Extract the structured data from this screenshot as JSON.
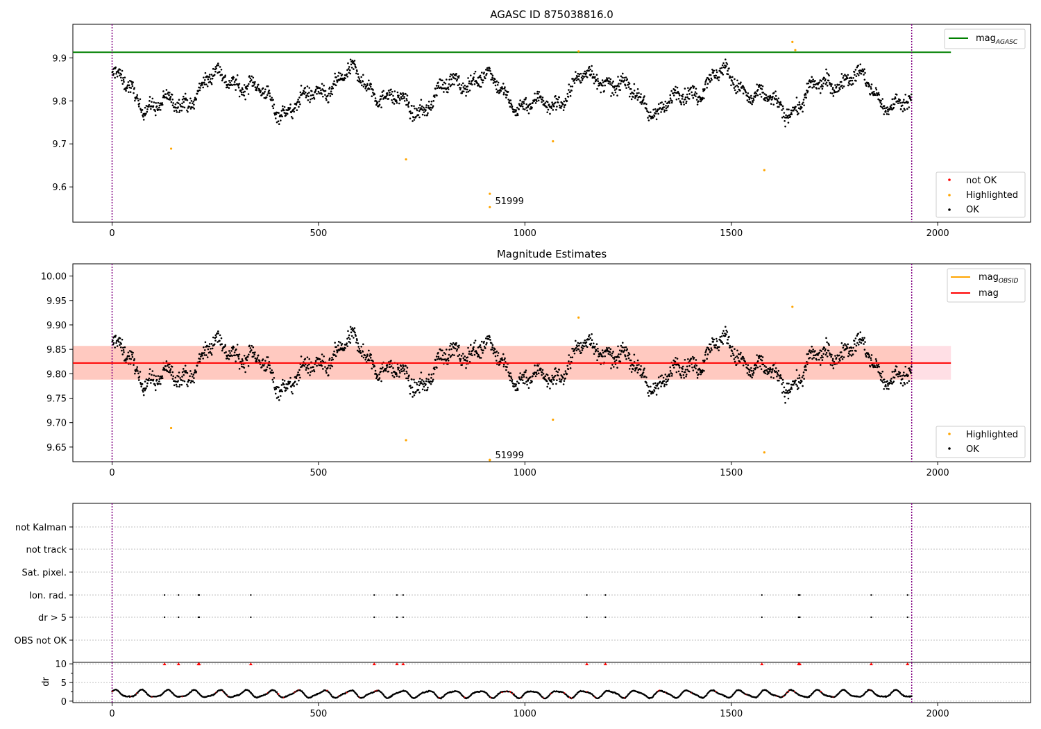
{
  "chart_data": [
    {
      "type": "scatter",
      "title": "AGASC ID 875038816.0",
      "xlim": [
        -95,
        2225
      ],
      "ylim": [
        9.518,
        9.978
      ],
      "xticks": [
        0,
        500,
        1000,
        1500,
        2000
      ],
      "yticks": [
        9.6,
        9.7,
        9.8,
        9.9
      ],
      "vlines": [
        0,
        1937
      ],
      "hlines": [
        {
          "y": 9.913,
          "x0": -95,
          "x1": 2032,
          "color": "#008000"
        }
      ],
      "series": [
        {
          "name": "not OK",
          "color": "#ff0000"
        },
        {
          "name": "Highlighted",
          "color": "#ffa500",
          "points": [
            [
              143,
              9.689
            ],
            [
              712,
              9.664
            ],
            [
              915,
              9.584
            ],
            [
              915,
              9.553
            ],
            [
              1068,
              9.706
            ],
            [
              1580,
              9.639
            ],
            [
              1648,
              9.937
            ],
            [
              1655,
              9.918
            ],
            [
              1130,
              9.915
            ]
          ]
        },
        {
          "name": "OK",
          "color": "#000000",
          "generated_range": [
            0,
            1937
          ]
        }
      ],
      "legend_lines": [
        {
          "label": "mag",
          "sub": "AGASC",
          "color": "#008000"
        }
      ],
      "annotations": [
        {
          "text": "51999",
          "x": 928,
          "y": 9.56
        }
      ]
    },
    {
      "type": "scatter",
      "title": "Magnitude Estimates",
      "xlim": [
        -95,
        2225
      ],
      "ylim": [
        9.62,
        10.025
      ],
      "xticks": [
        0,
        500,
        1000,
        1500,
        2000
      ],
      "yticks": [
        9.65,
        9.7,
        9.75,
        9.8,
        9.85,
        9.9,
        9.95,
        10.0
      ],
      "vlines": [
        0,
        1937
      ],
      "band": {
        "y0": 9.788,
        "y1": 9.857,
        "x0": -95,
        "x1": 2032
      },
      "hlines": [
        {
          "y": 9.822,
          "x0": -95,
          "x1": 2032,
          "color": "#ff0000"
        }
      ],
      "series": [
        {
          "name": "Highlighted",
          "color": "#ffa500",
          "points": [
            [
              143,
              9.689
            ],
            [
              712,
              9.664
            ],
            [
              915,
              9.623
            ],
            [
              915,
              9.624
            ],
            [
              1068,
              9.706
            ],
            [
              1580,
              9.639
            ],
            [
              1648,
              9.937
            ],
            [
              1130,
              9.915
            ]
          ]
        },
        {
          "name": "OK",
          "color": "#000000",
          "generated_range": [
            0,
            1937
          ]
        }
      ],
      "legend_lines": [
        {
          "label": "mag",
          "sub": "OBSID",
          "color": "#ffa500"
        },
        {
          "label": "mag",
          "sub": "",
          "color": "#ff0000"
        }
      ],
      "annotations": [
        {
          "text": "51999",
          "x": 928,
          "y": 9.627
        }
      ]
    },
    {
      "type": "scatter",
      "xlim": [
        -95,
        2225
      ],
      "categories": [
        "not Kalman",
        "not track",
        "Sat. pixel.",
        "Ion. rad.",
        "dr > 5",
        "OBS not OK"
      ],
      "flag_x": {
        "Ion. rad.": [
          127,
          161,
          209,
          211,
          336,
          635,
          690,
          705,
          1150,
          1195,
          1574,
          1663,
          1666,
          1839,
          1927
        ],
        "dr > 5": [
          127,
          161,
          209,
          211,
          336,
          635,
          690,
          705,
          1150,
          1195,
          1574,
          1663,
          1666,
          1839,
          1927
        ]
      },
      "vlines": [
        0,
        1937
      ]
    },
    {
      "type": "scatter",
      "ylabel": "dr",
      "xlim": [
        -95,
        2225
      ],
      "ylim": [
        -0.4,
        10.4
      ],
      "xticks": [
        0,
        500,
        1000,
        1500,
        2000
      ],
      "yticks": [
        0,
        5,
        10
      ],
      "vlines": [
        0,
        1937
      ],
      "clipped_points_x": [
        127,
        161,
        209,
        211,
        336,
        635,
        690,
        705,
        1150,
        1195,
        1574,
        1663,
        1666,
        1839,
        1927
      ]
    }
  ]
}
